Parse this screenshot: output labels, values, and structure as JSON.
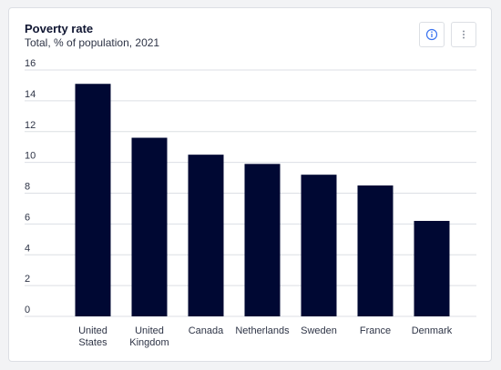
{
  "header": {
    "title": "Poverty rate",
    "subtitle": "Total, % of population, 2021"
  },
  "icons": {
    "info": "info-icon",
    "more": "more-vertical-icon"
  },
  "colors": {
    "bar": "#000833",
    "grid": "#dcdfe4",
    "accent": "#3a73f0"
  },
  "chart_data": {
    "type": "bar",
    "categories": [
      "United States",
      "United Kingdom",
      "Canada",
      "Netherlands",
      "Sweden",
      "France",
      "Denmark"
    ],
    "category_lines": [
      [
        "United",
        "States"
      ],
      [
        "United",
        "Kingdom"
      ],
      [
        "Canada"
      ],
      [
        "Netherlands"
      ],
      [
        "Sweden"
      ],
      [
        "France"
      ],
      [
        "Denmark"
      ]
    ],
    "values": [
      15.1,
      11.6,
      10.5,
      9.9,
      9.2,
      8.5,
      6.2
    ],
    "title": "Poverty rate",
    "subtitle": "Total, % of population, 2021",
    "ylim": [
      0,
      16
    ],
    "yticks": [
      "0",
      "2",
      "4",
      "6",
      "8",
      "10",
      "12",
      "14",
      "16"
    ],
    "grid": true
  }
}
